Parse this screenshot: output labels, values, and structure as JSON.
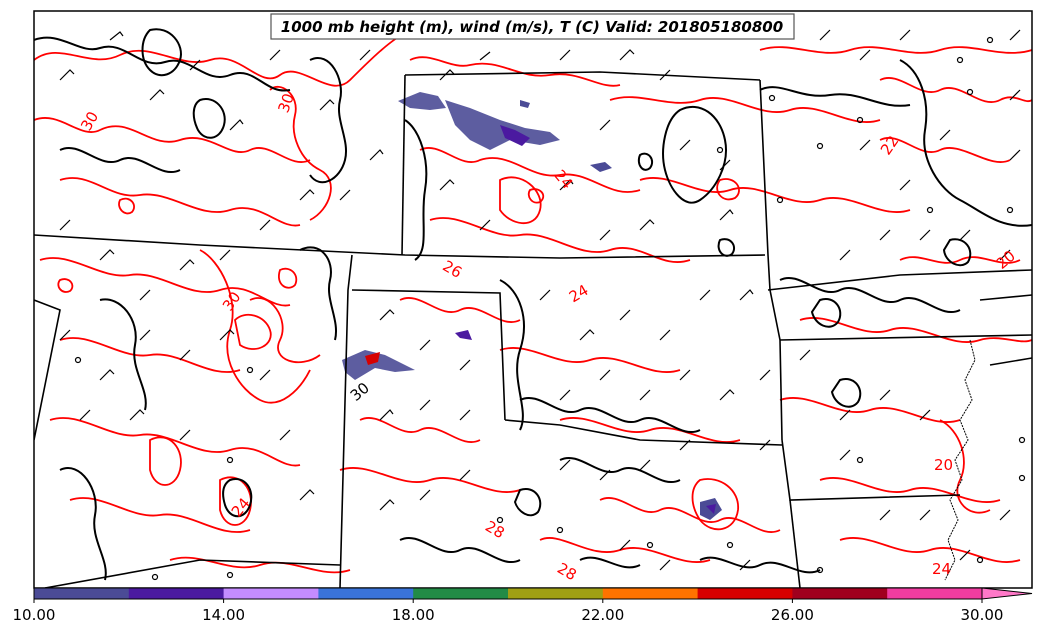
{
  "title": "1000 mb height (m), wind (m/s), T (C) Valid: 201805180800",
  "colorbar": {
    "ticks": [
      "10.00",
      "14.00",
      "18.00",
      "22.00",
      "26.00",
      "30.00"
    ],
    "colors": [
      "#4b4b96",
      "#4b1aa0",
      "#c48cff",
      "#3a73d9",
      "#228b46",
      "#a0a014",
      "#ff7300",
      "#d70000",
      "#a0001e",
      "#f03ca0",
      "#ff78c8"
    ]
  },
  "contour_labels": {
    "red": [
      "30",
      "30",
      "30",
      "22",
      "24",
      "26",
      "24",
      "20",
      "28",
      "28",
      "24",
      "20",
      "24",
      "24",
      "24"
    ],
    "black": [
      "30"
    ]
  },
  "colors": {
    "temperature_contour": "#ff0000",
    "height_contour": "#000000",
    "border": "#000000",
    "title_bg": "#ffffff"
  }
}
